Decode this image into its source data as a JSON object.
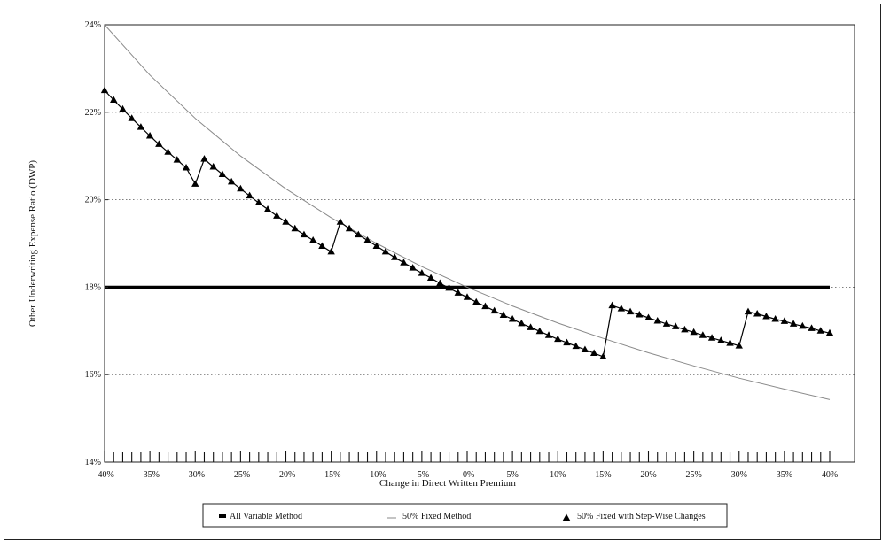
{
  "chart_data": {
    "type": "line",
    "title": "",
    "xlabel": "Change in Direct Written Premium",
    "ylabel": "Other Underwriting Expense Ratio (DWP)",
    "xlim": [
      -40,
      40
    ],
    "ylim": [
      14,
      24
    ],
    "x_ticks": [
      -40,
      -35,
      -30,
      -25,
      -20,
      -15,
      -10,
      -5,
      0,
      5,
      10,
      15,
      20,
      25,
      30,
      35,
      40
    ],
    "x_tick_labels": [
      "-40%",
      "-35%",
      "-30%",
      "-25%",
      "-20%",
      "-15%",
      "-10%",
      "-5%",
      "-0%",
      "5%",
      "10%",
      "15%",
      "20%",
      "25%",
      "30%",
      "35%",
      "40%"
    ],
    "y_ticks": [
      14,
      16,
      18,
      20,
      22,
      24
    ],
    "y_tick_labels": [
      "14%",
      "16%",
      "18%",
      "20%",
      "22%",
      "24%"
    ],
    "grid": "horizontal dotted",
    "legend_position": "bottom",
    "series": [
      {
        "name": "All Variable Method",
        "style": "thick-line",
        "color": "#000000",
        "x": [
          -40,
          40
        ],
        "values": [
          18.0,
          18.0
        ]
      },
      {
        "name": "50% Fixed Method",
        "style": "thin-line",
        "color": "#8a8a8a",
        "x": [
          -40,
          -35,
          -30,
          -25,
          -20,
          -15,
          -10,
          -5,
          0,
          5,
          10,
          15,
          20,
          25,
          30,
          35,
          40
        ],
        "values": [
          24.0,
          22.85,
          21.86,
          21.0,
          20.25,
          19.59,
          19.0,
          18.47,
          18.0,
          17.57,
          17.18,
          16.83,
          16.5,
          16.2,
          15.92,
          15.67,
          15.43
        ]
      },
      {
        "name": "50% Fixed with Step-Wise Changes",
        "style": "line-triangle-markers",
        "color": "#000000",
        "x": [
          -40,
          -39,
          -38,
          -37,
          -36,
          -35,
          -34,
          -33,
          -32,
          -31,
          -30,
          -29,
          -28,
          -27,
          -26,
          -25,
          -24,
          -23,
          -22,
          -21,
          -20,
          -19,
          -18,
          -17,
          -16,
          -15,
          -14,
          -13,
          -12,
          -11,
          -10,
          -9,
          -8,
          -7,
          -6,
          -5,
          -4,
          -3,
          -2,
          -1,
          0,
          1,
          2,
          3,
          4,
          5,
          6,
          7,
          8,
          9,
          10,
          11,
          12,
          13,
          14,
          15,
          16,
          17,
          18,
          19,
          20,
          21,
          22,
          23,
          24,
          25,
          26,
          27,
          28,
          29,
          30,
          31,
          32,
          33,
          34,
          35,
          36,
          37,
          38,
          39,
          40
        ],
        "values": [
          22.5,
          22.28,
          22.07,
          21.86,
          21.66,
          21.46,
          21.27,
          21.09,
          20.91,
          20.73,
          20.36,
          20.93,
          20.75,
          20.58,
          20.41,
          20.25,
          20.09,
          19.93,
          19.78,
          19.63,
          19.49,
          19.34,
          19.2,
          19.07,
          18.94,
          18.81,
          19.49,
          19.34,
          19.2,
          19.07,
          18.94,
          18.81,
          18.68,
          18.56,
          18.44,
          18.32,
          18.21,
          18.09,
          17.98,
          17.87,
          17.77,
          17.66,
          17.56,
          17.46,
          17.36,
          17.27,
          17.17,
          17.08,
          16.99,
          16.9,
          16.81,
          16.73,
          16.65,
          16.57,
          16.49,
          16.41,
          17.58,
          17.51,
          17.44,
          17.37,
          17.3,
          17.23,
          17.16,
          17.1,
          17.03,
          16.97,
          16.9,
          16.84,
          16.78,
          16.72,
          16.66,
          17.44,
          17.39,
          17.33,
          17.27,
          17.22,
          17.16,
          17.11,
          17.06,
          17.0,
          16.95
        ]
      }
    ]
  }
}
